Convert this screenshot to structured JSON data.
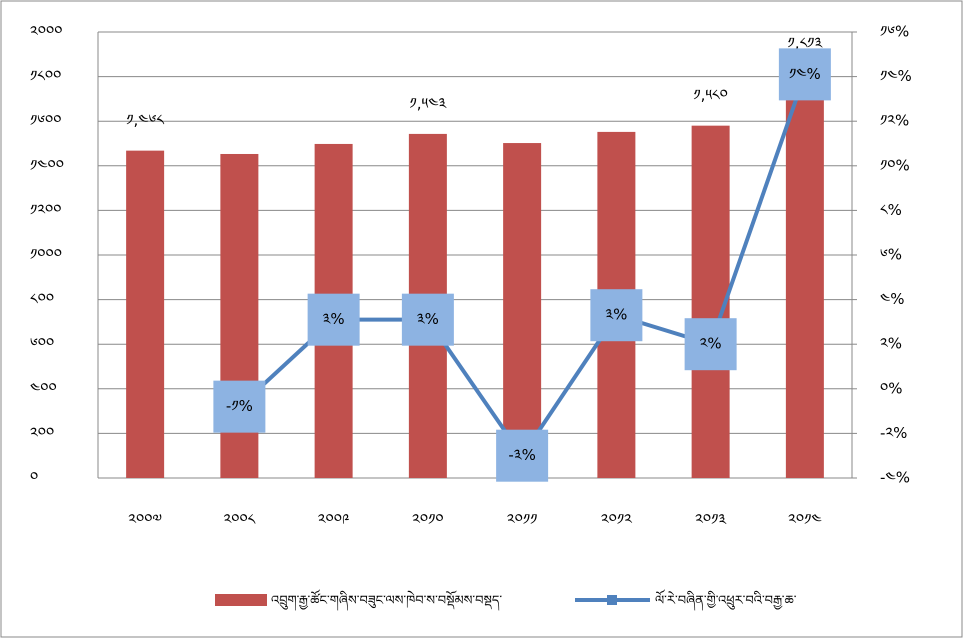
{
  "chart_data": {
    "type": "bar_line",
    "categories": [
      "༢༠༠༧",
      "༢༠༠༨",
      "༢༠༠༩",
      "༢༠༡༠",
      "༢༠༡༡",
      "༢༠༡༢",
      "༢༠༡༣",
      "༢༠༡༤"
    ],
    "series": [
      {
        "name": "འབྲུག་རྒྱ་ཚོང་གཞིས་བཟུང་ལས་ཁེབ་ས་བསྡོམས་བསྡད་",
        "type": "bar",
        "color": "#c0504d",
        "values": [
          1468,
          1453,
          1498,
          1543,
          1502,
          1552,
          1580,
          1813
        ],
        "value_labels": [
          "༡,༤༦༨",
          null,
          null,
          "༡,༥༤༣",
          null,
          null,
          "༡,༥༨༠",
          "༡,༨༡༣"
        ]
      },
      {
        "name": "ལོ་རེ་བཞིན་གྱི་འཕྲུར་བའི་བརྒྱ་ཆ་",
        "type": "line",
        "axis": "y2",
        "color": "#4f81bd",
        "values": [
          null,
          -0.8,
          3.1,
          3.1,
          -3.0,
          3.3,
          2.0,
          14.1
        ],
        "value_labels": [
          null,
          "-༡%",
          "༣%",
          "༣%",
          "-༣%",
          "༣%",
          "༢%",
          "༡༤%"
        ]
      }
    ],
    "ylim": [
      0,
      2000
    ],
    "yticks": [
      {
        "value": 0,
        "label": "༠"
      },
      {
        "value": 200,
        "label": "༢༠༠"
      },
      {
        "value": 400,
        "label": "༤༠༠"
      },
      {
        "value": 600,
        "label": "༦༠༠"
      },
      {
        "value": 800,
        "label": "༨༠༠"
      },
      {
        "value": 1000,
        "label": "༡༠༠༠"
      },
      {
        "value": 1200,
        "label": "༡༢༠༠"
      },
      {
        "value": 1400,
        "label": "༡༤༠༠"
      },
      {
        "value": 1600,
        "label": "༡༦༠༠"
      },
      {
        "value": 1800,
        "label": "༡༨༠༠"
      },
      {
        "value": 2000,
        "label": "༢༠༠༠"
      }
    ],
    "y2lim": [
      -4,
      16
    ],
    "y2ticks": [
      {
        "value": -4,
        "label": "-༤%"
      },
      {
        "value": -2,
        "label": "-༢%"
      },
      {
        "value": 0,
        "label": "༠%"
      },
      {
        "value": 2,
        "label": "༢%"
      },
      {
        "value": 4,
        "label": "༤%"
      },
      {
        "value": 6,
        "label": "༦%"
      },
      {
        "value": 8,
        "label": "༨%"
      },
      {
        "value": 10,
        "label": "༡༠%"
      },
      {
        "value": 12,
        "label": "༡༢%"
      },
      {
        "value": 14,
        "label": "༡༤%"
      },
      {
        "value": 16,
        "label": "༡༦%"
      }
    ],
    "grid": true,
    "legend": "bottom"
  }
}
